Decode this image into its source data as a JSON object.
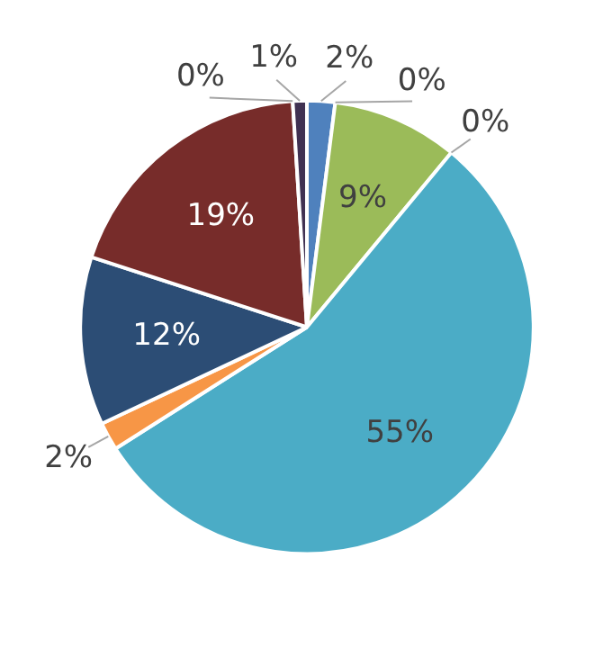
{
  "chart_data": {
    "type": "pie",
    "categories": [
      null,
      null,
      null,
      null,
      null,
      null,
      null,
      null,
      null,
      null
    ],
    "values": [
      2,
      0,
      9,
      0,
      55,
      2,
      12,
      19,
      0,
      1
    ],
    "colors": [
      "#4f81bd",
      "#c0504d",
      "#9bbb59",
      "#8064a2",
      "#4bacc6",
      "#f79646",
      "#2c4d75",
      "#772c2a",
      "#5f7530",
      "#403152"
    ],
    "value_labels": [
      "2%",
      "0%",
      "9%",
      "0%",
      "55%",
      "2%",
      "12%",
      "19%",
      "0%",
      "1%"
    ]
  }
}
